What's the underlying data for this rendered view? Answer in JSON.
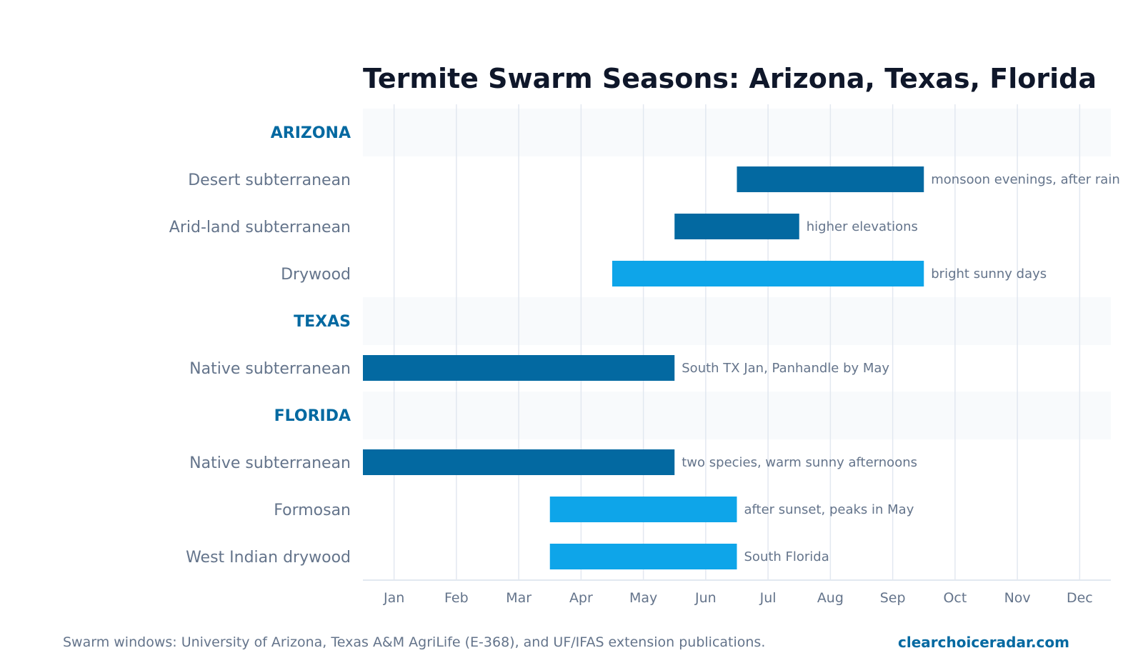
{
  "chart_data": {
    "type": "bar",
    "title": "Termite Swarm Seasons: Arizona, Texas, Florida",
    "months": [
      "Jan",
      "Feb",
      "Mar",
      "Apr",
      "May",
      "Jun",
      "Jul",
      "Aug",
      "Sep",
      "Oct",
      "Nov",
      "Dec"
    ],
    "xlim": [
      0.5,
      12.5
    ],
    "grid": true,
    "rows": [
      {
        "label": "ARIZONA",
        "group": true
      },
      {
        "label": "Desert subterranean",
        "start": 6.5,
        "end": 9.5,
        "color": "#0369a1",
        "note": "monsoon evenings, after rain"
      },
      {
        "label": "Arid-land subterranean",
        "start": 5.5,
        "end": 7.5,
        "color": "#0369a1",
        "note": "higher elevations"
      },
      {
        "label": "Drywood",
        "start": 4.5,
        "end": 9.5,
        "color": "#0ea5e9",
        "note": "bright sunny days"
      },
      {
        "label": "TEXAS",
        "group": true
      },
      {
        "label": "Native subterranean",
        "start": 0.5,
        "end": 5.5,
        "color": "#0369a1",
        "note": "South TX Jan, Panhandle by May"
      },
      {
        "label": "FLORIDA",
        "group": true
      },
      {
        "label": "Native subterranean",
        "start": 0.5,
        "end": 5.5,
        "color": "#0369a1",
        "note": "two species, warm sunny afternoons"
      },
      {
        "label": "Formosan",
        "start": 3.5,
        "end": 6.5,
        "color": "#0ea5e9",
        "note": "after sunset, peaks in May"
      },
      {
        "label": "West Indian drywood",
        "start": 3.5,
        "end": 6.5,
        "color": "#0ea5e9",
        "note": "South Florida"
      }
    ]
  },
  "footer": {
    "note": "Swarm windows: University of Arizona, Texas A&M AgriLife (E-368), and UF/IFAS extension publications.",
    "brand": "clearchoiceradar.com"
  }
}
